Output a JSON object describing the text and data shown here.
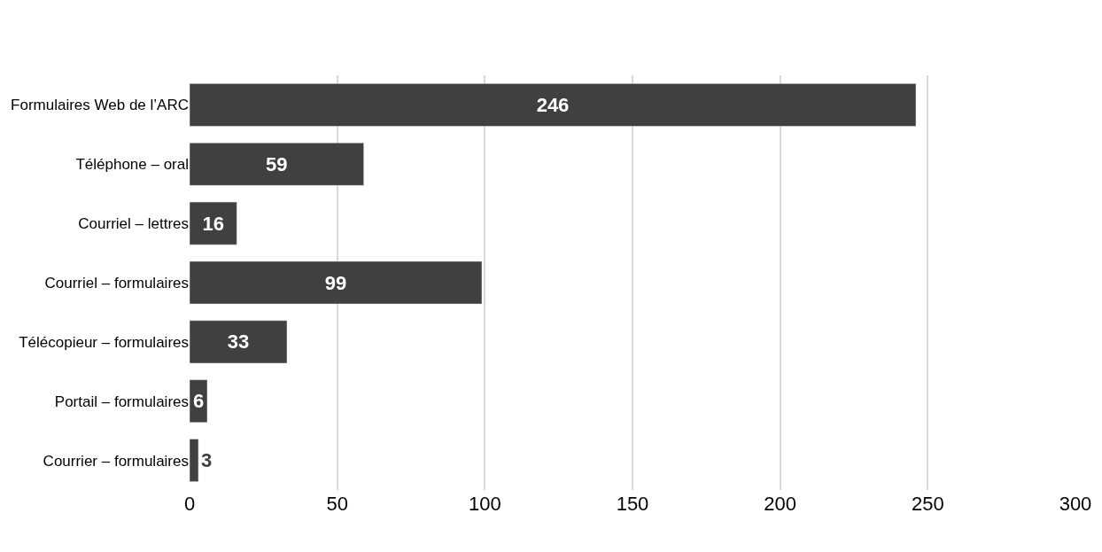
{
  "chart_data": {
    "type": "bar",
    "orientation": "horizontal",
    "categories": [
      "Formulaires Web de l’ARC",
      "Téléphone – oral",
      "Courriel – lettres",
      "Courriel – formulaires",
      "Télécopieur – formulaires",
      "Portail – formulaires",
      "Courrier – formulaires"
    ],
    "values": [
      246,
      59,
      16,
      99,
      33,
      6,
      3
    ],
    "color": "#404040",
    "xlim": [
      0,
      300
    ],
    "xticks": [
      0,
      50,
      100,
      150,
      200,
      250,
      300
    ],
    "grid": "x",
    "data_labels": true,
    "legend": false
  }
}
